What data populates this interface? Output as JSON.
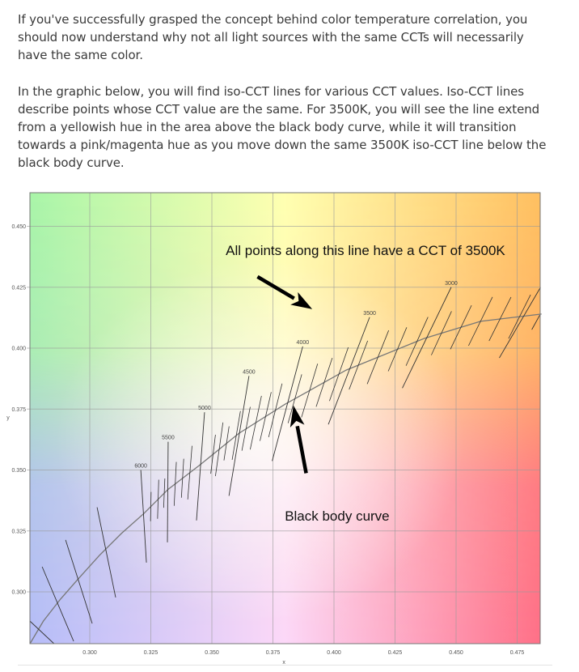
{
  "paragraphs": [
    "If you've successfully grasped the concept behind color temperature correlation, you should now understand why not all light sources with the same CCTs will necessarily have the same color.",
    "In the graphic below, you will find iso-CCT lines for various CCT values. Iso-CCT lines describe points whose CCT value are the same. For 3500K, you will see the line extend from a yellowish hue in the area above the black body curve, while it will transition towards a pink/magenta hue as you move down the same 3500K iso-CCT line below the black body curve."
  ],
  "chart_data": {
    "type": "line",
    "title": "",
    "xlabel": "x",
    "ylabel": "y",
    "xlim": [
      0.2755,
      0.485
    ],
    "ylim": [
      0.2787,
      0.464
    ],
    "grid": true,
    "x_ticks": [
      "0.300",
      "0.325",
      "0.350",
      "0.375",
      "0.400",
      "0.425",
      "0.450",
      "0.475"
    ],
    "y_ticks": [
      "0.300",
      "0.325",
      "0.350",
      "0.375",
      "0.400",
      "0.425",
      "0.450"
    ],
    "background_colors": {
      "top": [
        "#a8f5a8",
        "#ffffb0",
        "#ffc060"
      ],
      "bottom": [
        "#b6bdf8",
        "#fcd8f8",
        "#ff7088"
      ]
    },
    "black_body_curve": {
      "name": "Black body curve",
      "points": [
        [
          0.2755,
          0.2787
        ],
        [
          0.281,
          0.288
        ],
        [
          0.288,
          0.297
        ],
        [
          0.295,
          0.305
        ],
        [
          0.304,
          0.315
        ],
        [
          0.313,
          0.324
        ],
        [
          0.322,
          0.332
        ],
        [
          0.332,
          0.342
        ],
        [
          0.345,
          0.352
        ],
        [
          0.361,
          0.365
        ],
        [
          0.38,
          0.377
        ],
        [
          0.405,
          0.391
        ],
        [
          0.437,
          0.404
        ],
        [
          0.46,
          0.411
        ],
        [
          0.485,
          0.414
        ]
      ]
    },
    "iso_cct_lines": [
      {
        "label": "6000",
        "from": [
          0.3209,
          0.35
        ],
        "to": [
          0.3232,
          0.312
        ]
      },
      {
        "label": "5500",
        "from": [
          0.3321,
          0.3616
        ],
        "to": [
          0.3318,
          0.3203
        ]
      },
      {
        "label": "5000",
        "from": [
          0.347,
          0.3737
        ],
        "to": [
          0.3437,
          0.3293
        ]
      },
      {
        "label": "4500",
        "from": [
          0.3652,
          0.3886
        ],
        "to": [
          0.357,
          0.3394
        ]
      },
      {
        "label": "4000",
        "from": [
          0.3872,
          0.4007
        ],
        "to": [
          0.3747,
          0.3537
        ]
      },
      {
        "label": "3500",
        "from": [
          0.4146,
          0.4127
        ],
        "to": [
          0.3977,
          0.3687
        ]
      },
      {
        "label": "3000",
        "from": [
          0.448,
          0.425
        ],
        "to": [
          0.428,
          0.3836
        ]
      },
      {
        "label": "",
        "from": [
          0.4846,
          0.425
        ],
        "to": [
          0.4677,
          0.396
        ]
      },
      {
        "label": "",
        "from": [
          0.4843,
          0.4136
        ],
        "to": [
          0.481,
          0.4076
        ]
      },
      {
        "label": "",
        "from": [
          0.2805,
          0.3103
        ],
        "to": [
          0.2934,
          0.2797
        ]
      },
      {
        "label": "",
        "from": [
          0.2901,
          0.3213
        ],
        "to": [
          0.301,
          0.287
        ]
      },
      {
        "label": "",
        "from": [
          0.303,
          0.3347
        ],
        "to": [
          0.3106,
          0.2977
        ]
      },
      {
        "label": "",
        "from": [
          0.2755,
          0.288
        ],
        "to": [
          0.2854,
          0.2787
        ]
      }
    ],
    "minor_iso_lines": [
      {
        "x": 0.325,
        "dy": 0.006,
        "dxdy": 0.02
      },
      {
        "x": 0.328,
        "dy": 0.008,
        "dxdy": 0.03
      },
      {
        "x": 0.3305,
        "dy": 0.006,
        "dxdy": 0.04
      },
      {
        "x": 0.335,
        "dy": 0.009,
        "dxdy": 0.05
      },
      {
        "x": 0.338,
        "dy": 0.008,
        "dxdy": 0.06
      },
      {
        "x": 0.341,
        "dy": 0.011,
        "dxdy": 0.08
      },
      {
        "x": 0.3505,
        "dy": 0.008,
        "dxdy": 0.12
      },
      {
        "x": 0.353,
        "dy": 0.011,
        "dxdy": 0.14
      },
      {
        "x": 0.356,
        "dy": 0.007,
        "dxdy": 0.15
      },
      {
        "x": 0.36,
        "dy": 0.01,
        "dxdy": 0.17
      },
      {
        "x": 0.364,
        "dy": 0.009,
        "dxdy": 0.19
      },
      {
        "x": 0.368,
        "dy": 0.011,
        "dxdy": 0.21
      },
      {
        "x": 0.372,
        "dy": 0.01,
        "dxdy": 0.23
      },
      {
        "x": 0.376,
        "dy": 0.011,
        "dxdy": 0.25
      },
      {
        "x": 0.384,
        "dy": 0.01,
        "dxdy": 0.28
      },
      {
        "x": 0.39,
        "dy": 0.011,
        "dxdy": 0.3
      },
      {
        "x": 0.396,
        "dy": 0.01,
        "dxdy": 0.33
      },
      {
        "x": 0.402,
        "dy": 0.011,
        "dxdy": 0.35
      },
      {
        "x": 0.41,
        "dy": 0.01,
        "dxdy": 0.38
      },
      {
        "x": 0.418,
        "dy": 0.011,
        "dxdy": 0.4
      },
      {
        "x": 0.426,
        "dy": 0.009,
        "dxdy": 0.42
      },
      {
        "x": 0.434,
        "dy": 0.01,
        "dxdy": 0.45
      },
      {
        "x": 0.444,
        "dy": 0.009,
        "dxdy": 0.46
      },
      {
        "x": 0.452,
        "dy": 0.009,
        "dxdy": 0.48
      },
      {
        "x": 0.46,
        "dy": 0.01,
        "dxdy": 0.49
      },
      {
        "x": 0.468,
        "dy": 0.009,
        "dxdy": 0.5
      },
      {
        "x": 0.476,
        "dy": 0.009,
        "dxdy": 0.5
      }
    ],
    "annotations": [
      {
        "text": "All points along this line have a CCT of 3500K",
        "at": [
          0.4129,
          0.4402
        ],
        "arrow_from": [
          0.3687,
          0.4293
        ],
        "arrow_to": [
          0.3911,
          0.416
        ]
      },
      {
        "text": "Black body curve",
        "at": [
          0.4013,
          0.3312
        ],
        "arrow_from": [
          0.3886,
          0.3487
        ],
        "arrow_to": [
          0.3834,
          0.3765
        ]
      }
    ]
  }
}
